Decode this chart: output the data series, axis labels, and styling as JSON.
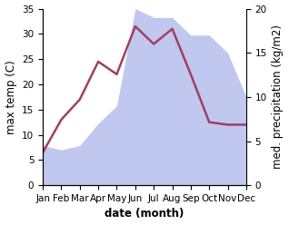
{
  "months": [
    "Jan",
    "Feb",
    "Mar",
    "Apr",
    "May",
    "Jun",
    "Jul",
    "Aug",
    "Sep",
    "Oct",
    "Nov",
    "Dec"
  ],
  "month_indices": [
    0,
    1,
    2,
    3,
    4,
    5,
    6,
    7,
    8,
    9,
    10,
    11
  ],
  "temp": [
    6.5,
    13.0,
    17.0,
    24.5,
    22.0,
    31.5,
    28.0,
    31.0,
    22.0,
    12.5,
    12.0,
    12.0
  ],
  "precip": [
    4.5,
    4.0,
    4.5,
    7.0,
    9.0,
    20.0,
    19.0,
    19.0,
    17.0,
    17.0,
    15.0,
    10.0
  ],
  "temp_color": "#a04060",
  "precip_fill_color": "#c0c8f0",
  "temp_ylim": [
    0,
    35
  ],
  "precip_ylim": [
    0,
    20
  ],
  "temp_yticks": [
    0,
    5,
    10,
    15,
    20,
    25,
    30,
    35
  ],
  "precip_yticks": [
    0,
    5,
    10,
    15,
    20
  ],
  "xlabel": "date (month)",
  "ylabel_left": "max temp (C)",
  "ylabel_right": "med. precipitation (kg/m2)",
  "label_fontsize": 8.5,
  "tick_fontsize": 7.5
}
